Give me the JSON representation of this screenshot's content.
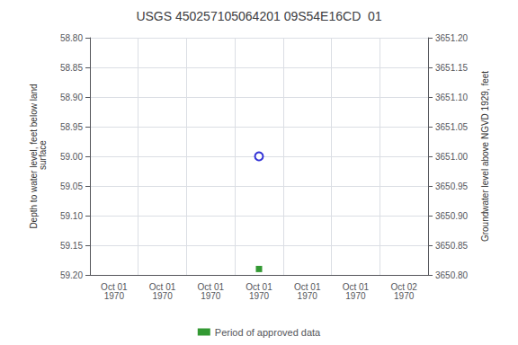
{
  "chart_data": {
    "type": "scatter",
    "title": "USGS 450257105064201 09S54E16CD  01",
    "ylabel": "Depth to water level, feet below land\n surface",
    "y2label": "Groundwater level above NGVD 1929, feet",
    "categories": [
      "Oct 01\n1970",
      "Oct 01\n1970",
      "Oct 01\n1970",
      "Oct 01\n1970",
      "Oct 01\n1970",
      "Oct 01\n1970",
      "Oct 02\n1970"
    ],
    "series": [
      {
        "color": "#0000cc",
        "marker": "open-circle",
        "values": [
          null,
          null,
          null,
          59.0,
          null,
          null,
          null
        ]
      },
      {
        "name": "Period of approved data",
        "color": "#008000",
        "marker": "square",
        "values": [
          null,
          null,
          null,
          59.19,
          null,
          null,
          null
        ]
      }
    ],
    "ylim": [
      59.2,
      58.8
    ],
    "yticks": [
      {
        "value": 58.8,
        "label": "58.80"
      },
      {
        "value": 58.85,
        "label": "58.85"
      },
      {
        "value": 58.9,
        "label": "58.90"
      },
      {
        "value": 58.95,
        "label": "58.95"
      },
      {
        "value": 59.0,
        "label": "59.00"
      },
      {
        "value": 59.05,
        "label": "59.05"
      },
      {
        "value": 59.1,
        "label": "59.10"
      },
      {
        "value": 59.15,
        "label": "59.15"
      },
      {
        "value": 59.2,
        "label": "59.20"
      }
    ],
    "y2lim": [
      3650.8,
      3651.2
    ],
    "y2ticks": [
      {
        "value": 3651.2,
        "label": "3651.20"
      },
      {
        "value": 3651.15,
        "label": "3651.15"
      },
      {
        "value": 3651.1,
        "label": "3651.10"
      },
      {
        "value": 3651.05,
        "label": "3651.05"
      },
      {
        "value": 3651.0,
        "label": "3651.00"
      },
      {
        "value": 3650.95,
        "label": "3650.95"
      },
      {
        "value": 3650.9,
        "label": "3650.90"
      },
      {
        "value": 3650.85,
        "label": "3650.85"
      },
      {
        "value": 3650.8,
        "label": "3650.80"
      }
    ],
    "grid": true,
    "legend": "bottom"
  }
}
